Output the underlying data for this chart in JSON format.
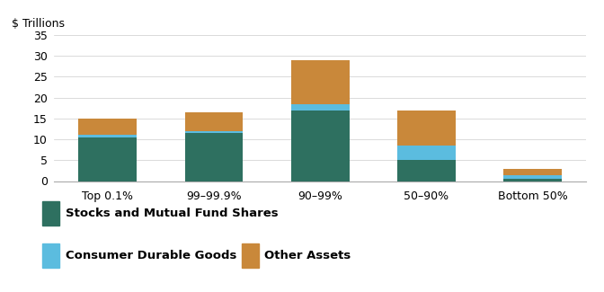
{
  "categories": [
    "Top 0.1%",
    "99–99.9%",
    "90–99%",
    "50–90%",
    "Bottom 50%"
  ],
  "stocks": [
    10.5,
    11.5,
    17.0,
    5.0,
    0.5
  ],
  "consumer_durable": [
    0.5,
    0.5,
    1.5,
    3.5,
    1.0
  ],
  "other_assets": [
    4.0,
    4.5,
    10.5,
    8.5,
    1.5
  ],
  "color_stocks": "#2e7060",
  "color_consumer": "#5bbcdf",
  "color_other": "#c9883a",
  "ylabel": "$ Trillions",
  "ylim": [
    0,
    35
  ],
  "yticks": [
    0,
    5,
    10,
    15,
    20,
    25,
    30,
    35
  ],
  "legend_stocks": "Stocks and Mutual Fund Shares",
  "legend_consumer": "Consumer Durable Goods",
  "legend_other": "Other Assets",
  "bar_width": 0.55,
  "background_color": "#ffffff"
}
